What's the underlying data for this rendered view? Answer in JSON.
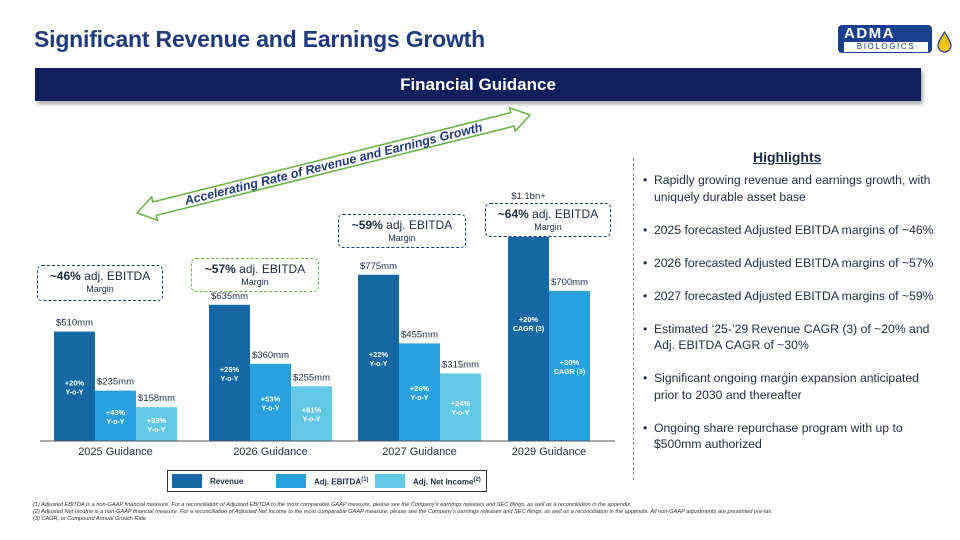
{
  "title": "Significant Revenue and Earnings Growth",
  "logo": {
    "name": "ADMA",
    "sub": "BIOLOGICS"
  },
  "banner": "Financial Guidance",
  "arrow_label": "Accelerating Rate of Revenue and Earnings Growth",
  "colors": {
    "revenue": "#1668a4",
    "ebitda": "#2aa0dc",
    "net_income": "#63c8e6",
    "navy": "#0e1f5c"
  },
  "chart_data": {
    "type": "bar",
    "title": "Financial Guidance",
    "units": "$mm",
    "categories": [
      "2025 Guidance",
      "2026 Guidance",
      "2027 Guidance",
      "2029 Guidance"
    ],
    "series": [
      {
        "name": "Revenue",
        "values": [
          510,
          635,
          775,
          1100
        ],
        "labels": [
          "$510mm",
          "$635mm",
          "$775mm",
          "$1.1bn+"
        ],
        "growth_lines": [
          [
            "+20%",
            "Y-o-Y"
          ],
          [
            "+25%",
            "Y-o-Y"
          ],
          [
            "+22%",
            "Y-o-Y"
          ],
          [
            "+20%",
            "CAGR (3)"
          ]
        ]
      },
      {
        "name": "Adj. EBITDA (1)",
        "values": [
          235,
          360,
          455,
          700
        ],
        "labels": [
          "$235mm",
          "$360mm",
          "$455mm",
          "$700mm"
        ],
        "growth_lines": [
          [
            "+43%",
            "Y-o-Y"
          ],
          [
            "+53%",
            "Y-o-Y"
          ],
          [
            "+26%",
            "Y-o-Y"
          ],
          [
            "+30%",
            "CAGR (3)"
          ]
        ]
      },
      {
        "name": "Adj. Net Income (2)",
        "values": [
          158,
          255,
          315,
          null
        ],
        "labels": [
          "$158mm",
          "$255mm",
          "$315mm",
          ""
        ],
        "growth_lines": [
          [
            "+33%",
            "Y-o-Y"
          ],
          [
            "+61%",
            "Y-o-Y"
          ],
          [
            "+24%",
            "Y-o-Y"
          ],
          [
            "",
            ""
          ]
        ]
      }
    ],
    "margin_callouts": [
      {
        "pct": "~46%",
        "text": "adj. EBITDA",
        "sub": "Margin"
      },
      {
        "pct": "~57%",
        "text": "adj. EBITDA",
        "sub": "Margin"
      },
      {
        "pct": "~59%",
        "text": "adj. EBITDA",
        "sub": "Margin"
      },
      {
        "pct": "~64%",
        "text": "adj. EBITDA",
        "sub": "Margin"
      }
    ]
  },
  "legend": {
    "revenue": "Revenue",
    "ebitda": "Adj. EBITDA",
    "ebitda_sup": "(1)",
    "net_income": "Adj. Net Income",
    "net_income_sup": "(2)"
  },
  "highlights": {
    "title": "Highlights",
    "items": [
      "Rapidly growing revenue and earnings growth, with uniquely durable asset base",
      "2025 forecasted Adjusted EBITDA margins of ~46%",
      "2026 forecasted Adjusted EBITDA margins of ~57%",
      "2027 forecasted Adjusted EBITDA margins of ~59%",
      "Estimated ‘25-’29 Revenue CAGR (3) of ~20% and Adj. EBITDA CAGR of ~30%",
      "Significant ongoing margin expansion anticipated prior to 2030 and thereafter",
      "Ongoing share repurchase program with up to $500mm authorized"
    ]
  },
  "footnotes": [
    "(1) Adjusted EBITDA is a non-GAAP financial measure. For a reconciliation of Adjusted EBITDA to the most comparable GAAP measure, please see the Company’s earnings releases and SEC filings, as well as a reconciliation in the appendix.",
    "(2) Adjusted Net Income is a non-GAAP financial measure. For a reconciliation of Adjusted Net Income to the most comparable GAAP measure, please see the Company’s earnings releases and SEC filings, as well as a reconciliation in the appendix. All non-GAAP adjustments are presented pre-tax.",
    "(3) CAGR, or Compound Annual Growth Rate"
  ]
}
